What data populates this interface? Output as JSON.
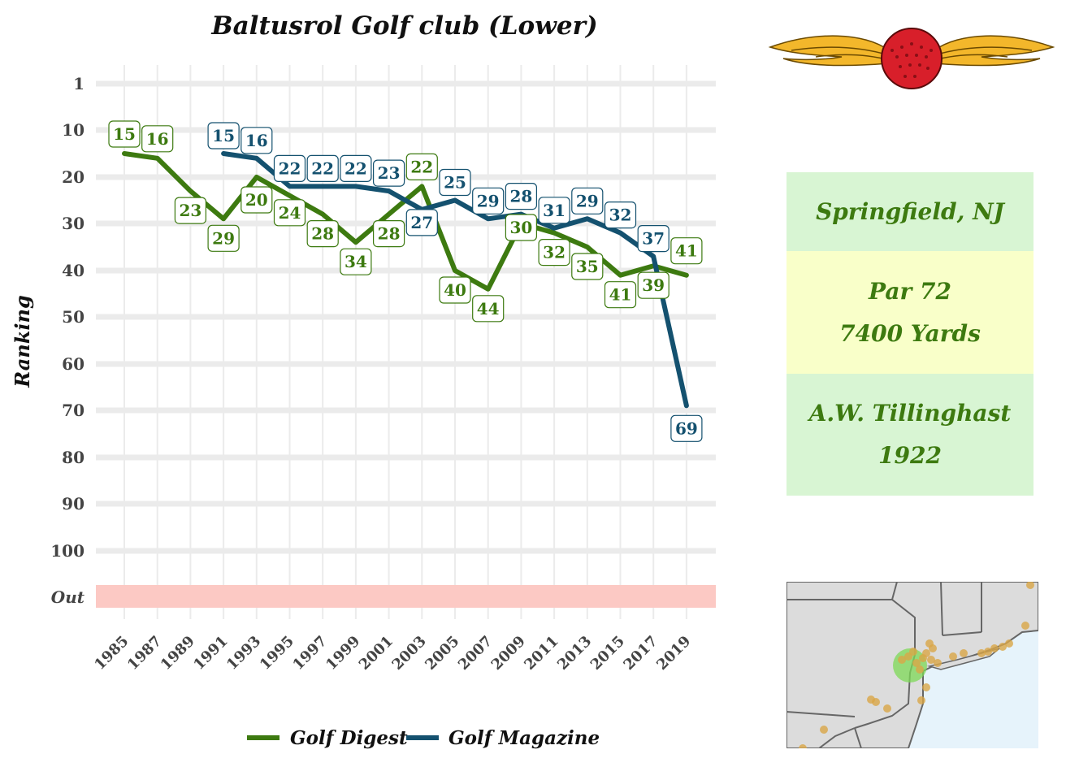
{
  "chart_data": {
    "type": "line",
    "title": "Baltusrol Golf club (Lower)",
    "ylabel": "Ranking",
    "xlabel": "",
    "x_ticks": [
      "1985",
      "1987",
      "1989",
      "1991",
      "1993",
      "1995",
      "1997",
      "1999",
      "2001",
      "2003",
      "2005",
      "2007",
      "2009",
      "2011",
      "2013",
      "2015",
      "2017",
      "2019"
    ],
    "y_ticks": [
      "1",
      "10",
      "20",
      "30",
      "40",
      "50",
      "60",
      "70",
      "80",
      "90",
      "100",
      "Out"
    ],
    "xlim": [
      1984,
      2021
    ],
    "ylim": [
      1,
      110
    ],
    "y_reversed": true,
    "out_band_color": "#fcc9c4",
    "grid": true,
    "legend_position": "bottom",
    "series": [
      {
        "name": "Golf Digest",
        "color": "#3d7a10",
        "points": [
          {
            "x": 1985,
            "y": 15
          },
          {
            "x": 1987,
            "y": 16
          },
          {
            "x": 1989,
            "y": 23
          },
          {
            "x": 1991,
            "y": 29
          },
          {
            "x": 1993,
            "y": 20
          },
          {
            "x": 1995,
            "y": 24
          },
          {
            "x": 1997,
            "y": 28
          },
          {
            "x": 1999,
            "y": 34
          },
          {
            "x": 2001,
            "y": 28
          },
          {
            "x": 2003,
            "y": 22
          },
          {
            "x": 2005,
            "y": 40
          },
          {
            "x": 2007,
            "y": 44
          },
          {
            "x": 2009,
            "y": 30
          },
          {
            "x": 2011,
            "y": 32
          },
          {
            "x": 2013,
            "y": 35
          },
          {
            "x": 2015,
            "y": 41
          },
          {
            "x": 2017,
            "y": 39
          },
          {
            "x": 2019,
            "y": 41
          }
        ]
      },
      {
        "name": "Golf Magazine",
        "color": "#14516f",
        "points": [
          {
            "x": 1991,
            "y": 15
          },
          {
            "x": 1993,
            "y": 16
          },
          {
            "x": 1995,
            "y": 22
          },
          {
            "x": 1997,
            "y": 22
          },
          {
            "x": 1999,
            "y": 22
          },
          {
            "x": 2001,
            "y": 23
          },
          {
            "x": 2003,
            "y": 27
          },
          {
            "x": 2005,
            "y": 25
          },
          {
            "x": 2007,
            "y": 29
          },
          {
            "x": 2009,
            "y": 28
          },
          {
            "x": 2011,
            "y": 31
          },
          {
            "x": 2013,
            "y": 29
          },
          {
            "x": 2015,
            "y": 32
          },
          {
            "x": 2017,
            "y": 37
          },
          {
            "x": 2019,
            "y": 69
          }
        ]
      }
    ]
  },
  "info": {
    "location": "Springfield, NJ",
    "par": "Par 72",
    "yards": "7400 Yards",
    "architect": "A.W. Tillinghast",
    "year": "1922"
  },
  "colors": {
    "green_box": "#d8f5d3",
    "yellow_box": "#f9ffc9",
    "info_text": "#3d7a10",
    "map_land": "#dcdcdc",
    "map_water": "#e6f3fb",
    "map_point": "#d9a647",
    "highlight": "#7ed957"
  },
  "icons": {
    "logo": "winged-golf-ball-icon",
    "map": "northeast-us-map"
  }
}
